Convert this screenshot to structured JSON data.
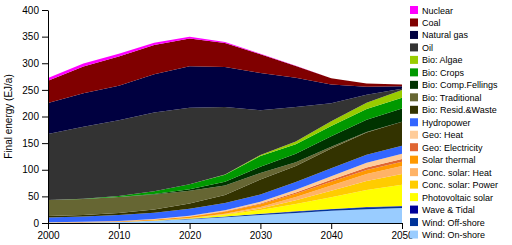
{
  "chart_data": {
    "type": "area",
    "stacked": true,
    "y_label": "Final energy (EJ/a)",
    "x": [
      2000,
      2005,
      2010,
      2015,
      2020,
      2025,
      2030,
      2035,
      2040,
      2045,
      2050
    ],
    "xlim": [
      2000,
      2050
    ],
    "xticks": [
      2000,
      2010,
      2020,
      2030,
      2040,
      2050
    ],
    "ylim": [
      0,
      400
    ],
    "yticks": [
      0,
      50,
      100,
      150,
      200,
      250,
      300,
      350,
      400
    ],
    "grid": false,
    "legend": "right",
    "series": [
      {
        "name": "Wind: On-shore",
        "color": "#99ccff",
        "values": [
          0.5,
          1,
          2,
          4,
          7,
          11,
          15,
          19,
          23,
          26,
          28
        ]
      },
      {
        "name": "Wind: Off-shore",
        "color": "#003399",
        "values": [
          0,
          0,
          0,
          0.3,
          0.7,
          1.2,
          1.8,
          2.3,
          2.7,
          3,
          3
        ]
      },
      {
        "name": "Wave & Tidal",
        "color": "#000099",
        "values": [
          0,
          0,
          0,
          0,
          0.1,
          0.2,
          0.4,
          0.6,
          0.8,
          1,
          1
        ]
      },
      {
        "name": "Photovoltaic solar",
        "color": "#ffff00",
        "values": [
          0,
          0,
          0,
          0.3,
          1,
          3,
          7,
          14,
          22,
          32,
          40
        ]
      },
      {
        "name": "Conc. solar: Power",
        "color": "#ffcc00",
        "values": [
          0,
          0,
          0,
          0.1,
          0.3,
          1,
          3,
          7,
          12,
          17,
          20
        ]
      },
      {
        "name": "Conc. solar: Heat",
        "color": "#ffb366",
        "values": [
          0,
          0,
          0,
          0,
          0.2,
          1,
          3,
          6,
          10,
          13,
          15
        ]
      },
      {
        "name": "Solar thermal",
        "color": "#ff9900",
        "values": [
          0.3,
          0.5,
          1,
          1.5,
          2.5,
          3.5,
          5,
          6,
          7,
          7.5,
          8
        ]
      },
      {
        "name": "Geo: Electricity",
        "color": "#e06633",
        "values": [
          0.2,
          0.3,
          0.3,
          0.4,
          0.6,
          1,
          1.5,
          2.5,
          3.5,
          4.5,
          5
        ]
      },
      {
        "name": "Geo: Heat",
        "color": "#ffcc99",
        "values": [
          0.3,
          0.4,
          0.5,
          0.8,
          1.2,
          2,
          3,
          5,
          7,
          9,
          10
        ]
      },
      {
        "name": "Hydropower",
        "color": "#3366ff",
        "values": [
          9,
          10,
          11,
          12,
          13,
          13.5,
          14,
          14.5,
          15,
          15,
          15
        ]
      },
      {
        "name": "Bio: Resid.&Waste",
        "color": "#333300",
        "values": [
          3,
          3,
          4,
          6,
          10,
          15,
          28,
          30,
          37,
          42,
          45
        ]
      },
      {
        "name": "Bio: Traditional",
        "color": "#666633",
        "values": [
          30,
          30,
          30,
          28,
          24,
          18,
          12,
          7,
          3,
          1,
          0
        ]
      },
      {
        "name": "Bio: Comp.Fellings",
        "color": "#003300",
        "values": [
          0,
          0,
          0,
          1,
          3,
          7,
          12,
          16,
          20,
          23,
          25
        ]
      },
      {
        "name": "Bio: Crops",
        "color": "#009900",
        "values": [
          0,
          0.5,
          2,
          5,
          9,
          13,
          20,
          18,
          19,
          20,
          20
        ]
      },
      {
        "name": "Bio: Algae",
        "color": "#99cc00",
        "values": [
          0,
          0,
          0,
          0,
          0,
          0.5,
          2,
          5,
          9,
          12,
          15
        ]
      },
      {
        "name": "Oil",
        "color": "#333333",
        "values": [
          124,
          135,
          142,
          148,
          144,
          127,
          84,
          65,
          34,
          15,
          2
        ]
      },
      {
        "name": "Natural gas",
        "color": "#000040",
        "values": [
          58,
          63,
          65,
          72,
          78,
          75,
          70,
          55,
          35,
          15,
          5
        ]
      },
      {
        "name": "Coal",
        "color": "#800000",
        "values": [
          42,
          50,
          55,
          55,
          52,
          45,
          35,
          22,
          12,
          6,
          3
        ]
      },
      {
        "name": "Nuclear",
        "color": "#ff00ff",
        "values": [
          5,
          6,
          5,
          4,
          3,
          2,
          1,
          0.5,
          0,
          0,
          0
        ]
      }
    ]
  }
}
